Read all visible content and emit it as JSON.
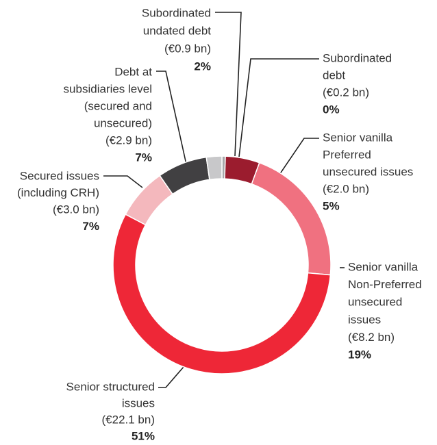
{
  "chart_data": {
    "type": "donut",
    "labels": [
      [
        "Subordinated",
        "debt"
      ],
      [
        "Senior vanilla",
        "Preferred",
        "unsecured issues"
      ],
      [
        "Senior vanilla",
        "Non-Preferred",
        "unsecured",
        "issues"
      ],
      [
        "Senior structured",
        "issues"
      ],
      [
        "Secured issues",
        "(including CRH)"
      ],
      [
        "Debt at",
        "subsidiaries level",
        "(secured and",
        "unsecured)"
      ],
      [
        "Subordinated",
        "undated debt"
      ]
    ],
    "values": [
      0.2,
      2.0,
      8.2,
      22.1,
      3.0,
      2.9,
      0.9
    ],
    "value_labels": [
      "(€0.2 bn)",
      "(€2.0 bn)",
      "(€8.2 bn)",
      "(€22.1 bn)",
      "(€3.0 bn)",
      "(€2.9 bn)",
      "(€0.9 bn)"
    ],
    "share_labels": [
      "0%",
      "5%",
      "19%",
      "51%",
      "7%",
      "7%",
      "2%"
    ],
    "colors": [
      "#a7a7a9",
      "#9b1c2e",
      "#f07180",
      "#ee2737",
      "#f4b8bd",
      "#414042",
      "#c8c8ca"
    ]
  }
}
